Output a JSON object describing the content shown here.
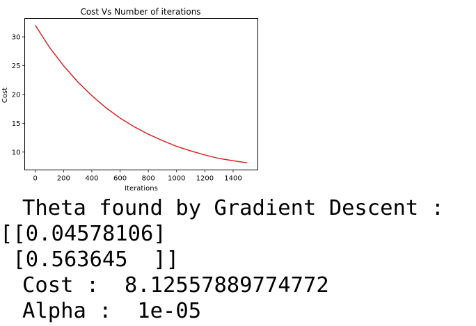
{
  "chart_data": {
    "type": "line",
    "title": "Cost Vs Number of iterations",
    "xlabel": "Iterations",
    "ylabel": "Cost",
    "xlim": [
      -75,
      1575
    ],
    "ylim": [
      6.9,
      33.2
    ],
    "xticks": [
      0,
      200,
      400,
      600,
      800,
      1000,
      1200,
      1400
    ],
    "yticks": [
      10,
      15,
      20,
      25,
      30
    ],
    "grid": false,
    "series": [
      {
        "color": "#d62728",
        "x": [
          0,
          100,
          200,
          300,
          400,
          500,
          600,
          700,
          800,
          900,
          1000,
          1100,
          1200,
          1300,
          1400,
          1500
        ],
        "y": [
          32.0,
          28.2,
          25.0,
          22.2,
          19.8,
          17.7,
          15.9,
          14.4,
          13.1,
          12.0,
          11.0,
          10.2,
          9.5,
          8.9,
          8.5,
          8.13
        ]
      }
    ]
  },
  "output": {
    "lines": [
      "Theta found by Gradient Descent :",
      "[[0.04578106]",
      " [0.563645  ]]",
      "Cost :  8.12557889774772",
      "Alpha :  1e-05"
    ]
  }
}
